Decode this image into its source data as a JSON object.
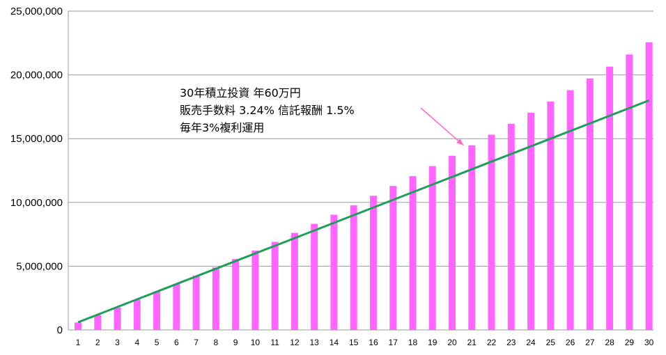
{
  "chart_data": {
    "type": "bar",
    "categories": [
      "1",
      "2",
      "3",
      "4",
      "5",
      "6",
      "7",
      "8",
      "9",
      "10",
      "11",
      "12",
      "13",
      "14",
      "15",
      "16",
      "17",
      "18",
      "19",
      "20",
      "21",
      "22",
      "23",
      "24",
      "25",
      "26",
      "27",
      "28",
      "29",
      "30"
    ],
    "series": [
      {
        "type": "bar",
        "color": "#ff66ff",
        "values": [
          580000,
          1170000,
          1760000,
          2370000,
          2990000,
          3610000,
          4250000,
          4900000,
          5560000,
          6230000,
          6910000,
          7610000,
          8320000,
          9040000,
          9780000,
          10520000,
          11290000,
          12060000,
          12850000,
          13660000,
          14480000,
          15310000,
          16160000,
          17030000,
          17910000,
          18800000,
          19720000,
          20650000,
          21600000,
          22560000
        ]
      },
      {
        "type": "line",
        "color": "#1f9e5a",
        "values": [
          600000,
          1200000,
          1800000,
          2400000,
          3000000,
          3600000,
          4200000,
          4800000,
          5400000,
          6000000,
          6600000,
          7200000,
          7800000,
          8400000,
          9000000,
          9600000,
          10200000,
          10800000,
          11400000,
          12000000,
          12600000,
          13200000,
          13800000,
          14400000,
          15000000,
          15600000,
          16200000,
          16800000,
          17400000,
          18000000
        ]
      }
    ],
    "yticks": [
      "0",
      "5,000,000",
      "10,000,000",
      "15,000,000",
      "20,000,000",
      "25,000,000"
    ],
    "ytick_values": [
      0,
      5000000,
      10000000,
      15000000,
      20000000,
      25000000
    ],
    "ylim": [
      0,
      25000000
    ],
    "grid": true,
    "annotation": {
      "lines": [
        "30年積立投資 年60万円",
        "販売手数料 3.24% 信託報酬 1.5%",
        "毎年3%複利運用"
      ],
      "arrow_color": "#ff66cc",
      "points_to_category": "21"
    }
  }
}
